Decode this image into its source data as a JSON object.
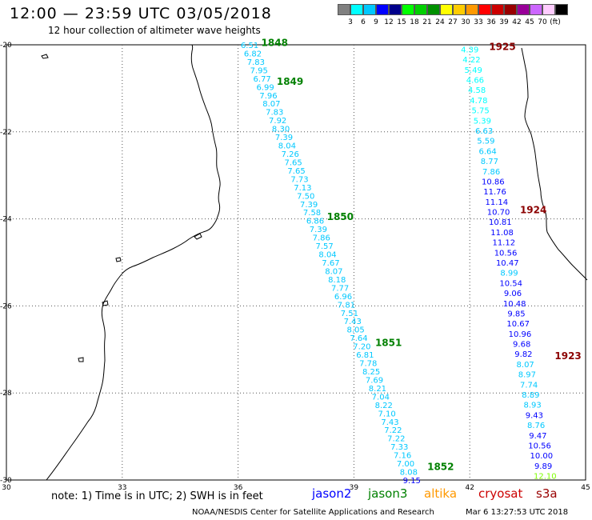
{
  "title": "12:00 — 23:59 UTC 03/05/2018",
  "subtitle": "12 hour collection of altimeter wave heights",
  "legend": {
    "unit": "(ft)",
    "colors": [
      "#808080",
      "#00ffff",
      "#00c8ff",
      "#0000ff",
      "#00008b",
      "#00ff00",
      "#00d000",
      "#009000",
      "#ffff00",
      "#ffcc00",
      "#ff9900",
      "#ff0000",
      "#cc0000",
      "#990000",
      "#990099",
      "#cc66ff",
      "#ffccff",
      "#000000"
    ],
    "labels": [
      "3",
      "6",
      "9",
      "12",
      "15",
      "18",
      "21",
      "24",
      "27",
      "30",
      "33",
      "36",
      "39",
      "42",
      "45",
      "70"
    ]
  },
  "axes": {
    "lon_ticks": [
      "30",
      "33",
      "36",
      "39",
      "42",
      "45"
    ],
    "lat_ticks": [
      "-20",
      "-22",
      "-24",
      "-26",
      "-28",
      "-30"
    ]
  },
  "tracks": [
    {
      "name": "jason3",
      "start": [
        36.3,
        -20.0
      ],
      "end": [
        40.5,
        -30.0
      ],
      "values": [
        "6.51",
        "6.82",
        "7.83",
        "7.95",
        "6.77",
        "6.99",
        "7.96",
        "8.07",
        "7.83",
        "7.92",
        "8.30",
        "7.39",
        "8.04",
        "7.26",
        "7.65",
        "7.65",
        "7.73",
        "7.13",
        "7.50",
        "7.39",
        "7.58",
        "6.86",
        "7.39",
        "7.86",
        "7.57",
        "8.04",
        "7.67",
        "8.07",
        "8.18",
        "7.77",
        "6.96",
        "7.81",
        "7.51",
        "7.43",
        "8.05",
        "7.64",
        "7.20",
        "6.81",
        "7.78",
        "8.25",
        "7.69",
        "8.21",
        "7.04",
        "8.22",
        "7.10",
        "7.43",
        "7.22",
        "7.22",
        "7.33",
        "7.16",
        "7.00",
        "8.08",
        "9.15"
      ],
      "colors": [
        "#00c8ff",
        "#00c8ff",
        "#00c8ff",
        "#00c8ff",
        "#00c8ff",
        "#00c8ff",
        "#00c8ff",
        "#00c8ff",
        "#00c8ff",
        "#00c8ff",
        "#00c8ff",
        "#00c8ff",
        "#00c8ff",
        "#00c8ff",
        "#00c8ff",
        "#00c8ff",
        "#00c8ff",
        "#00c8ff",
        "#00c8ff",
        "#00c8ff",
        "#00c8ff",
        "#00c8ff",
        "#00c8ff",
        "#00c8ff",
        "#00c8ff",
        "#00c8ff",
        "#00c8ff",
        "#00c8ff",
        "#00c8ff",
        "#00c8ff",
        "#00c8ff",
        "#00c8ff",
        "#00c8ff",
        "#00c8ff",
        "#00c8ff",
        "#00c8ff",
        "#00c8ff",
        "#00c8ff",
        "#00c8ff",
        "#00c8ff",
        "#00c8ff",
        "#00c8ff",
        "#00c8ff",
        "#00c8ff",
        "#00c8ff",
        "#00c8ff",
        "#00c8ff",
        "#00c8ff",
        "#00c8ff",
        "#00c8ff",
        "#00c8ff",
        "#00c8ff",
        "#0000ff"
      ],
      "time_labels": [
        {
          "text": "1848",
          "lon": 36.6,
          "lat": -19.95,
          "color": "#008000"
        },
        {
          "text": "1849",
          "lon": 37.0,
          "lat": -20.85,
          "color": "#008000"
        },
        {
          "text": "1850",
          "lon": 38.3,
          "lat": -23.95,
          "color": "#008000"
        },
        {
          "text": "1851",
          "lon": 39.55,
          "lat": -26.85,
          "color": "#008000"
        },
        {
          "text": "1852",
          "lon": 40.9,
          "lat": -29.7,
          "color": "#008000"
        }
      ]
    },
    {
      "name": "cryosat",
      "start": [
        42.0,
        -20.1
      ],
      "end": [
        43.95,
        -29.9
      ],
      "values": [
        "4.39",
        "4.22",
        "5.49",
        "4.66",
        "4.58",
        "4.78",
        "5.75",
        "5.39",
        "6.63",
        "5.59",
        "6.64",
        "8.77",
        "7.86",
        "10.86",
        "11.76",
        "11.14",
        "10.70",
        "10.81",
        "11.08",
        "11.12",
        "10.56",
        "10.47",
        "8.99",
        "10.54",
        "9.06",
        "10.48",
        "9.85",
        "10.67",
        "10.96",
        "9.68",
        "9.82",
        "8.07",
        "8.97",
        "7.74",
        "8.89",
        "8.93",
        "9.43",
        "8.76",
        "9.47",
        "10.56",
        "10.00",
        "9.89",
        "12.10"
      ],
      "colors": [
        "#00ffff",
        "#00ffff",
        "#00ffff",
        "#00ffff",
        "#00ffff",
        "#00ffff",
        "#00ffff",
        "#00ffff",
        "#00c8ff",
        "#00c8ff",
        "#00c8ff",
        "#00c8ff",
        "#00c8ff",
        "#0000ff",
        "#0000ff",
        "#0000ff",
        "#0000ff",
        "#0000ff",
        "#0000ff",
        "#0000ff",
        "#0000ff",
        "#0000ff",
        "#00c8ff",
        "#0000ff",
        "#0000ff",
        "#0000ff",
        "#0000ff",
        "#0000ff",
        "#0000ff",
        "#0000ff",
        "#0000ff",
        "#00c8ff",
        "#00c8ff",
        "#00c8ff",
        "#00c8ff",
        "#00c8ff",
        "#0000ff",
        "#00c8ff",
        "#0000ff",
        "#0000ff",
        "#0000ff",
        "#0000ff",
        "#7fff00"
      ],
      "time_labels": [
        {
          "text": "1925",
          "lon": 42.5,
          "lat": -20.05,
          "color": "#8b0000"
        },
        {
          "text": "1924",
          "lon": 43.3,
          "lat": -23.8,
          "color": "#8b0000"
        },
        {
          "text": "1923",
          "lon": 44.2,
          "lat": -27.15,
          "color": "#8b0000"
        }
      ]
    }
  ],
  "footer": {
    "note": "note: 1) Time is in UTC; 2) SWH is in feet",
    "satellites": [
      {
        "name": "jason2",
        "color": "#0000ff"
      },
      {
        "name": "jason3",
        "color": "#008000"
      },
      {
        "name": "altika",
        "color": "#ff9900"
      },
      {
        "name": "cryosat",
        "color": "#cc0000"
      },
      {
        "name": "s3a",
        "color": "#990000"
      }
    ],
    "credit": "NOAA/NESDIS Center for Satellite Applications and Research",
    "timestamp": "Mar  6 13:27:53 UTC 2018"
  }
}
